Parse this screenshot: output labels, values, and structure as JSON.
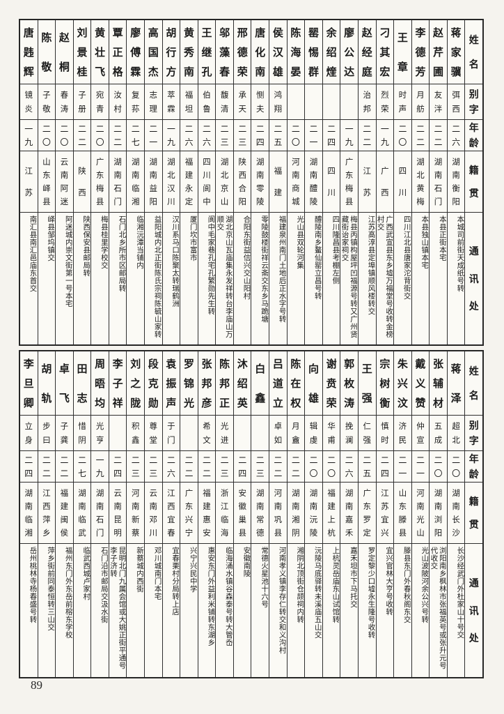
{
  "page_number": "89",
  "row_headers": {
    "name": "姓名",
    "zi": "别字",
    "age": "年龄",
    "origin": "籍贯",
    "address": "通讯处"
  },
  "table_top": {
    "people": [
      {
        "name": "蒋家骥",
        "zi": "弭西",
        "age": "二六",
        "origin": "湖南衡阳",
        "address": "本城司前街天成纸号转"
      },
      {
        "name": "赵芹圃",
        "zi": "友泮",
        "age": "二二",
        "origin": "湖南石门",
        "address": "本县正街本宅"
      },
      {
        "name": "李德芳",
        "zi": "月舫",
        "age": "二二",
        "origin": "湖北黄梅",
        "address": "本县独山镇本宅"
      },
      {
        "name": "王章",
        "zi": "时声",
        "age": "二〇",
        "origin": "四川",
        "address": "四川江北县唐家沱背街交"
      },
      {
        "name": "刁其宏",
        "zi": "烈荣",
        "age": "一九",
        "origin": "广西",
        "address": "广西武宣县东乡墟万福堂号收转金榜村交"
      },
      {
        "name": "赵经庭",
        "zi": "治邦",
        "age": "二二",
        "origin": "江苏",
        "address": "江苏高淳县定埠镇顺风楼转交"
      },
      {
        "name": "廖公达",
        "zi": "",
        "age": "一九",
        "origin": "广东梅县",
        "address": "梅县丙镇构屋坪凹福源号转又广州贤藏街诒家祠交"
      },
      {
        "name": "余绍煃",
        "zi": "",
        "age": "二四",
        "origin": "四川",
        "address": "四川隆昌县考棚左侧"
      },
      {
        "name": "罂惕群",
        "zi": "",
        "age": "二一",
        "origin": "湖南醴陵",
        "address": "醴陵南乡鳌仙罂立昌号转"
      },
      {
        "name": "陈海晏",
        "zi": "",
        "age": "二〇",
        "origin": "河南商城",
        "address": "光山县双轮河集"
      },
      {
        "name": "侯汉雄",
        "zi": "鸿翔",
        "age": "二五",
        "origin": "福建",
        "address": "福建泉州南门土地后正水字号转"
      },
      {
        "name": "唐化南",
        "zi": "恻夫",
        "age": "二四",
        "origin": "湖南零陵",
        "address": "零陵鼓楼街祥云斋交东乡马跪塘"
      },
      {
        "name": "邢德荣",
        "zi": "承天",
        "age": "二三",
        "origin": "陕西合阳",
        "address": "合阳东街益信兴交山阳村"
      },
      {
        "name": "邬藻春",
        "zi": "馥清",
        "age": "二三",
        "origin": "湖北京山",
        "address": "湖北京山瓦庙集永发祥转台李庙山万顺交"
      },
      {
        "name": "王继孔",
        "zi": "伯鲁",
        "age": "二六",
        "origin": "四川阆中",
        "address": "阆中毛家巷孔宅孔繁勋先生转"
      },
      {
        "name": "黄秀南",
        "zi": "福坦",
        "age": "二六",
        "origin": "福建永定",
        "address": "厦门坎市富市"
      },
      {
        "name": "胡行方",
        "zi": "萃霖",
        "age": "一九",
        "origin": "湖北汉川",
        "address": "汉川系马口陈聚太转瑞鹤洲"
      },
      {
        "name": "高国杰",
        "zi": "志理",
        "age": "二一",
        "origin": "湖南益阳",
        "address": "益阳城内北正街陈氏宗祠陈毓山家转"
      },
      {
        "name": "廖傅霖",
        "zi": "复荪",
        "age": "二七",
        "origin": "湖南临湘",
        "address": "临湘沅潭当铺内"
      },
      {
        "name": "覃正格",
        "zi": "汝村",
        "age": "二二",
        "origin": "湖南石门",
        "address": "石门北乡所市区邮局转"
      },
      {
        "name": "黄壮飞",
        "zi": "宛青",
        "age": "二〇",
        "origin": "广东梅县",
        "address": "梅县桂里学校交"
      },
      {
        "name": "刘景桂",
        "zi": "子册",
        "age": "二二",
        "origin": "陕西",
        "address": "陕西保安县邮局转"
      },
      {
        "name": "赵桐",
        "zi": "春涛",
        "age": "二〇",
        "origin": "云南阿迷",
        "address": "阿迷城内崇文街第一号本宅"
      },
      {
        "name": "陈敬",
        "zi": "子敬",
        "age": "二〇",
        "origin": "山东峄县",
        "address": "峄县邹坞镇交"
      },
      {
        "name": "唐韪辉",
        "zi": "镜炎",
        "age": "一九",
        "origin": "江苏",
        "address": "南汇县南汇邑庙东首交"
      }
    ]
  },
  "table_bottom": {
    "people": [
      {
        "name": "蒋泽",
        "zi": "超北",
        "age": "二〇",
        "origin": "湖南长沙",
        "address": "长沙经武门外杜家山十号交"
      },
      {
        "name": "张辅材",
        "zi": "五成",
        "age": "二〇",
        "origin": "湖南浏阳",
        "address": "浏阳南乡枫林市张福英号或张升元号代收交"
      },
      {
        "name": "戴义赞",
        "zi": "仲宣",
        "age": "二一",
        "origin": "河南光山",
        "address": "光山波陂河余公兴号转"
      },
      {
        "name": "朱兴汶",
        "zi": "济民",
        "age": "二一",
        "origin": "山东滕县",
        "address": "滕县东门外春秋阁东交"
      },
      {
        "name": "宗树衡",
        "zi": "慎时",
        "age": "二四",
        "origin": "江苏宜兴",
        "address": "宜兴官林大亨号收转"
      },
      {
        "name": "王强",
        "zi": "仁强",
        "age": "二五",
        "origin": "广东罗定",
        "address": "罗定黎少口墟永生隆号收转"
      },
      {
        "name": "郭枚涛",
        "zi": "挽澜",
        "age": "二六",
        "origin": "湖南嘉禾",
        "address": "嘉禾坦市下马托交"
      },
      {
        "name": "谢贲荣",
        "zi": "华甫",
        "age": "二〇",
        "origin": "福建上杭",
        "address": "上杭灵岳庙东山试馆转"
      },
      {
        "name": "向雄",
        "zi": "辑虔",
        "age": "二〇",
        "origin": "湖南沅陵",
        "address": "沅陵马底驿转未溪庙五山交"
      },
      {
        "name": "陈在权",
        "zi": "月盦",
        "age": "二二",
        "origin": "湖南湘阴",
        "address": "湘阴北顶街仓颉祠内转"
      },
      {
        "name": "吕道立",
        "zi": "卓如",
        "age": "二二",
        "origin": "河南巩县",
        "address": "河南孝义镇李存仁转交和义沟村"
      },
      {
        "name": "白鑫",
        "zi": "",
        "age": "二三",
        "origin": "湖南常德",
        "address": "常德火星池十六号"
      },
      {
        "name": "沐绍英",
        "zi": "",
        "age": "二四",
        "origin": "安徽巢县",
        "address": "安徽南陵"
      },
      {
        "name": "陈邦正",
        "zi": "光进",
        "age": "二三",
        "origin": "浙江临海",
        "address": "临海涌水镇谷森泰号转大管岙"
      },
      {
        "name": "张邦彦",
        "zi": "希文",
        "age": "二二",
        "origin": "福建惠安",
        "address": "惠安东门外益利米铺转东湖乡"
      },
      {
        "name": "罗锦光",
        "zi": "",
        "age": "二二",
        "origin": "广东兴宁",
        "address": "兴宁兴民中学"
      },
      {
        "name": "袁振声",
        "zi": "于门",
        "age": "二六",
        "origin": "江西宜春",
        "address": "宜春栗村分局转上店"
      },
      {
        "name": "段克勋",
        "zi": "尊堂",
        "age": "二三",
        "origin": "云南邓川",
        "address": "邓川城南门本宅"
      },
      {
        "name": "刘之陇",
        "zi": "积鑫",
        "age": "二三",
        "origin": "河南新蔡",
        "address": "新蔡城内西街"
      },
      {
        "name": "李子祥",
        "zi": "",
        "age": "二四",
        "origin": "云南昆明",
        "address": "昆明北门九属会馆或大姚正街平通号李子济转"
      },
      {
        "name": "周晤均",
        "zi": "光亨",
        "age": "一九",
        "origin": "湖南石门",
        "address": "石门沿市邮局交汲水街"
      },
      {
        "name": "田志",
        "zi": "惜阴",
        "age": "二七",
        "origin": "湖南临武",
        "address": "临武西城卢家村"
      },
      {
        "name": "卓飞",
        "zi": "子龚",
        "age": "二二",
        "origin": "福建闽侯",
        "address": "福州东门外东岳前榕东学校"
      },
      {
        "name": "胡轨",
        "zi": "步曰",
        "age": "二二",
        "origin": "江西萍乡",
        "address": "萍乡街前同泰恒转三山交"
      },
      {
        "name": "李旦卿",
        "zi": "立身",
        "age": "二四",
        "origin": "湖南临湘",
        "address": "岳州桃林寺杨春盛号转"
      }
    ]
  }
}
